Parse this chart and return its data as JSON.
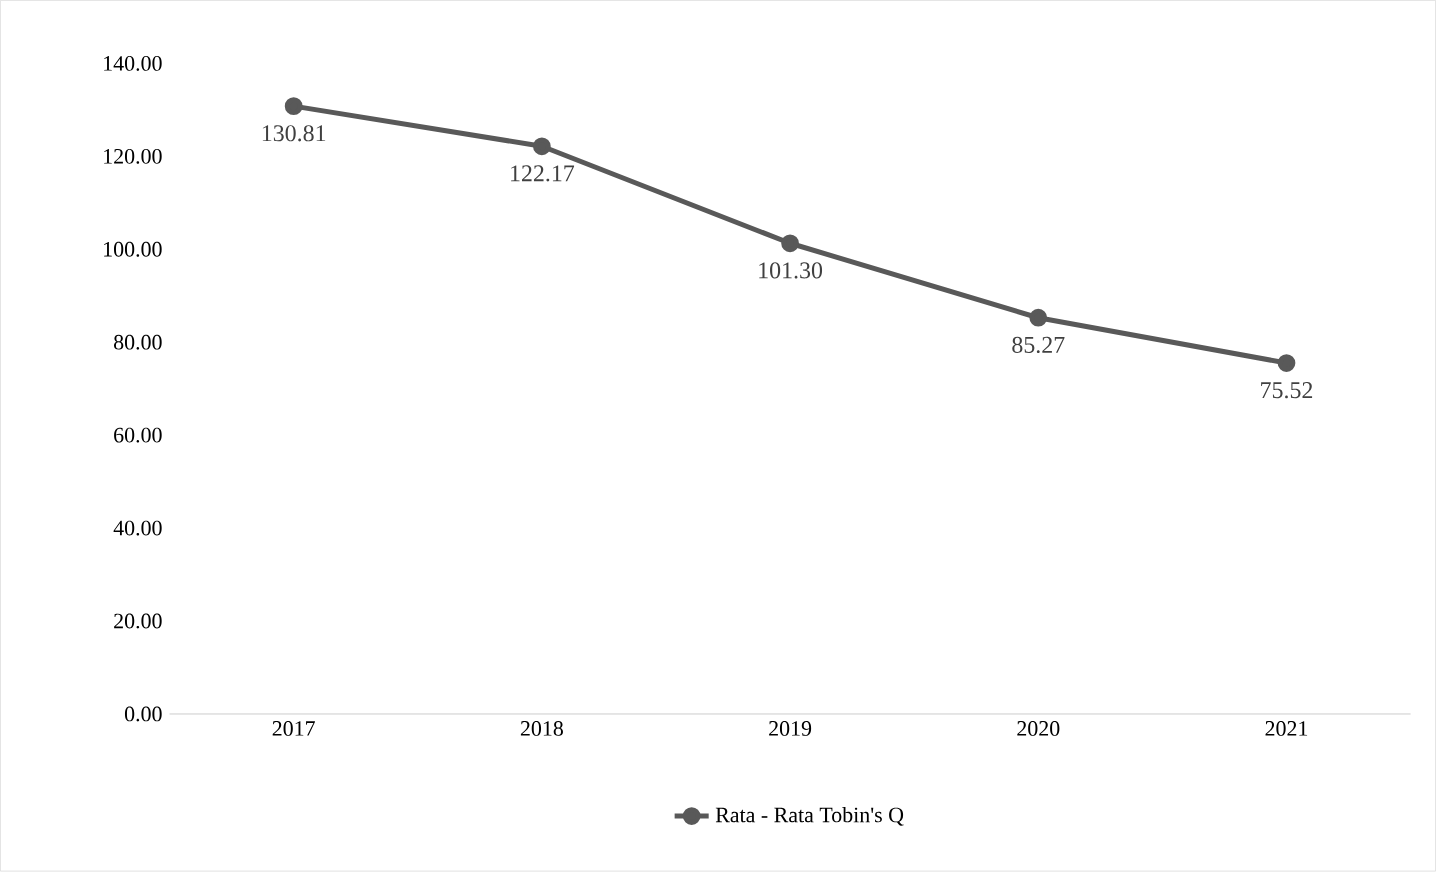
{
  "chart_data": {
    "type": "line",
    "categories": [
      "2017",
      "2018",
      "2019",
      "2020",
      "2021"
    ],
    "series": [
      {
        "name": "Rata - Rata Tobin's Q",
        "color": "#595959",
        "values": [
          130.81,
          122.17,
          101.3,
          85.27,
          75.52
        ],
        "value_labels": [
          "130.81",
          "122.17",
          "101.30",
          "85.27",
          "75.52"
        ]
      }
    ],
    "ylim": [
      0,
      140
    ],
    "yticks": [
      {
        "value": 0,
        "label": "0.00"
      },
      {
        "value": 20,
        "label": "20.00"
      },
      {
        "value": 40,
        "label": "40.00"
      },
      {
        "value": 60,
        "label": "60.00"
      },
      {
        "value": 80,
        "label": "80.00"
      },
      {
        "value": 100,
        "label": "100.00"
      },
      {
        "value": 120,
        "label": "120.00"
      },
      {
        "value": 140,
        "label": "140.00"
      }
    ],
    "marker": "circle",
    "line_style": "solid",
    "legend": "bottom",
    "grid": false
  }
}
